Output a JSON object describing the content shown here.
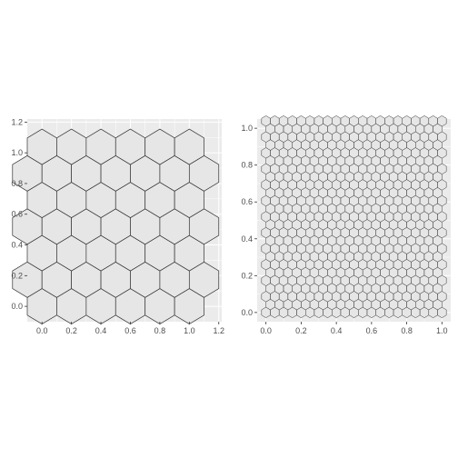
{
  "chart_data": [
    {
      "type": "hexgrid",
      "title": "",
      "xlabel": "",
      "ylabel": "",
      "grid": true,
      "xlim": [
        -0.1,
        1.22
      ],
      "ylim": [
        -0.1,
        1.22
      ],
      "x_ticks": [
        0.0,
        0.2,
        0.4,
        0.6,
        0.8,
        1.0,
        1.2
      ],
      "x_tick_labels": [
        "0.0",
        "0.2",
        "0.4",
        "0.6",
        "0.8",
        "1.0",
        "1.2"
      ],
      "y_ticks": [
        0.0,
        0.2,
        0.4,
        0.6,
        0.8,
        1.0,
        1.2
      ],
      "y_tick_labels": [
        "0.0",
        "0.2",
        "0.4",
        "0.6",
        "0.8",
        "1.0",
        "1.2"
      ],
      "hex_spacing_x": 0.2,
      "hex_rows": 7,
      "hex_first_row_center_y": 0.0,
      "hex_row_spacing_y": 0.1732,
      "hex_cols_in_long_row": 6,
      "hex_long_row_start_x": 0.0,
      "hex_short_row_start_x": -0.1,
      "hex_cols_in_short_row": 7,
      "fill": "#e6e6e6",
      "stroke": "#333333"
    },
    {
      "type": "hexgrid",
      "title": "",
      "xlabel": "",
      "ylabel": "",
      "grid": true,
      "xlim": [
        -0.05,
        1.05
      ],
      "ylim": [
        -0.05,
        1.05
      ],
      "x_ticks": [
        0.0,
        0.2,
        0.4,
        0.6,
        0.8,
        1.0
      ],
      "x_tick_labels": [
        "0.0",
        "0.2",
        "0.4",
        "0.6",
        "0.8",
        "1.0"
      ],
      "y_ticks": [
        0.0,
        0.2,
        0.4,
        0.6,
        0.8,
        1.0
      ],
      "y_tick_labels": [
        "0.0",
        "0.2",
        "0.4",
        "0.6",
        "0.8",
        "1.0"
      ],
      "hex_spacing_x": 0.05,
      "hex_rows": 25,
      "hex_first_row_center_y": 0.0,
      "hex_row_spacing_y": 0.0433,
      "hex_cols_in_long_row": 21,
      "hex_long_row_start_x": 0.0,
      "hex_short_row_start_x": 0.025,
      "hex_cols_in_short_row": 20,
      "fill": "#e6e6e6",
      "stroke": "#333333"
    }
  ],
  "colors": {
    "panel_background": "#ebebeb",
    "gridline": "#ffffff",
    "tick_text": "#4d4d4d",
    "tick_mark": "#333333"
  }
}
